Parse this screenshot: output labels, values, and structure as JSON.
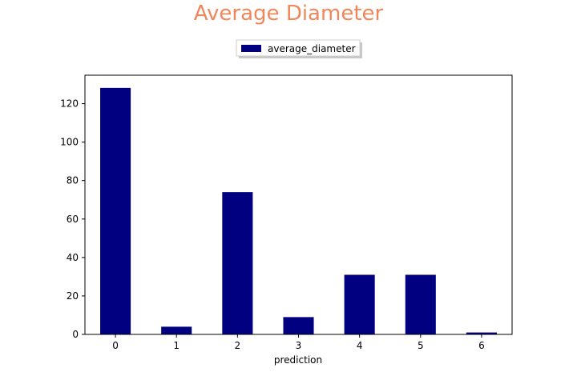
{
  "chart_data": {
    "type": "bar",
    "title": "Average Diameter",
    "xlabel": "prediction",
    "ylabel": "",
    "categories": [
      "0",
      "1",
      "2",
      "3",
      "4",
      "5",
      "6"
    ],
    "series": [
      {
        "name": "average_diameter",
        "values": [
          128.2,
          4,
          74,
          9,
          31,
          31,
          1
        ],
        "color": "#000080"
      }
    ],
    "ylim": [
      0,
      134.8
    ],
    "yticks": [
      0,
      20,
      40,
      60,
      80,
      100,
      120
    ],
    "grid": false,
    "legend_position": "top-center",
    "title_color": "#f0875a"
  }
}
